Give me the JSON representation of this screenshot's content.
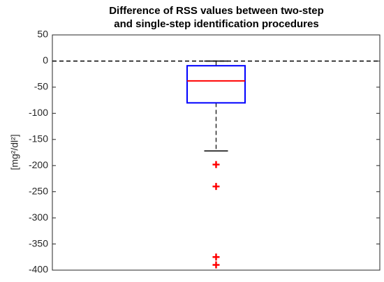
{
  "chart_data": {
    "type": "box",
    "title": [
      "Difference of RSS values between two-step",
      "and single-step identification procedures"
    ],
    "y_label": "[mg²/dl²]",
    "ylim": [
      -400,
      50
    ],
    "yticks": [
      -400,
      -350,
      -300,
      -250,
      -200,
      -150,
      -100,
      -50,
      0,
      50
    ],
    "reference_line": 0,
    "boxes": [
      {
        "whisker_low": -172,
        "q1": -80,
        "median": -38,
        "q3": -9,
        "whisker_high": 0,
        "outliers": [
          -198,
          -240,
          -375,
          -390
        ]
      }
    ],
    "box_color": "#0000ff",
    "median_color": "#ff0000",
    "whisker_color": "#000000",
    "outlier_color": "#ff0000"
  }
}
